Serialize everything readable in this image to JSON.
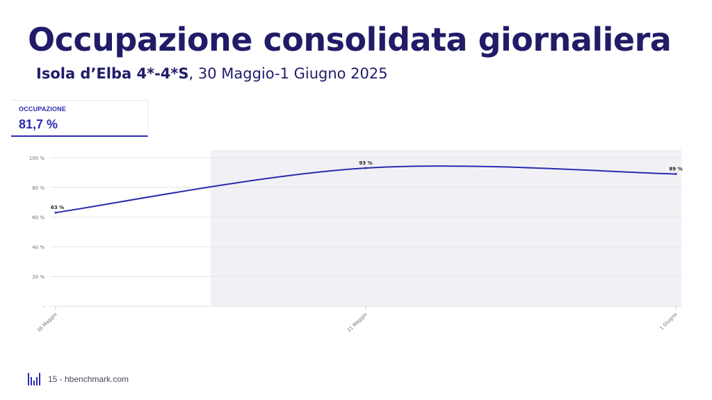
{
  "header": {
    "title": "Occupazione consolidata giornaliera",
    "subtitle_bold": "Isola d’Elba 4*-4*S",
    "subtitle_rest": ", 30 Maggio-1 Giugno 2025"
  },
  "kpi": {
    "label": "OCCUPAZIONE",
    "value": "81,7 %"
  },
  "footer": {
    "text": "15 - hbenchmark.com",
    "logo_icon": "hbenchmark-logo-icon"
  },
  "colors": {
    "primary": "#201c68",
    "accent": "#2a2ab0",
    "shaded": "#f1f1f5"
  },
  "chart_data": {
    "type": "line",
    "x": [
      "30 Maggio",
      "31 Maggio",
      "1 Giugno"
    ],
    "series": [
      {
        "values": [
          63,
          93,
          89
        ],
        "data_labels": [
          "63 %",
          "93 %",
          "89 %"
        ]
      }
    ],
    "yticks": [
      0,
      20,
      40,
      60,
      80,
      100
    ],
    "ytick_labels": [
      "-",
      "20 %",
      "40 %",
      "60 %",
      "80 %",
      "100 %"
    ],
    "ylim": [
      0,
      100
    ],
    "grid": true,
    "shaded_region": {
      "from_x": "30 Maggio",
      "from_fraction": 0.5,
      "to_x": "1 Giugno"
    },
    "title": "",
    "xlabel": "",
    "ylabel": ""
  }
}
